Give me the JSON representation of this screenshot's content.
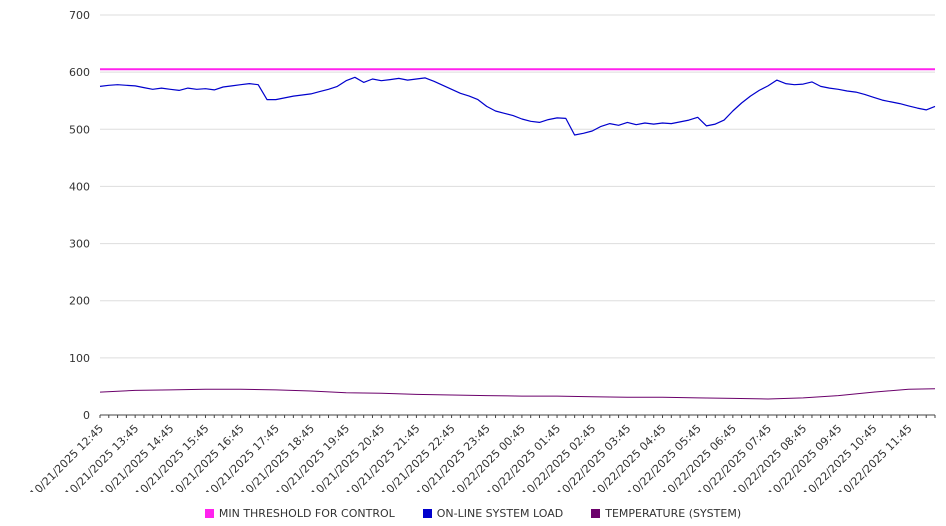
{
  "chart_data": {
    "type": "line",
    "title": "",
    "xlabel": "",
    "ylabel": "",
    "ylim": [
      0,
      700
    ],
    "y_ticks": [
      0,
      100,
      200,
      300,
      400,
      500,
      600,
      700
    ],
    "grid": true,
    "legend_position": "bottom",
    "x_hours_max": 23.75,
    "x_tick_labels": [
      "10/21/2025 12:45",
      "10/21/2025 13:45",
      "10/21/2025 14:45",
      "10/21/2025 15:45",
      "10/21/2025 16:45",
      "10/21/2025 17:45",
      "10/21/2025 18:45",
      "10/21/2025 19:45",
      "10/21/2025 20:45",
      "10/21/2025 21:45",
      "10/21/2025 22:45",
      "10/21/2025 23:45",
      "10/22/2025 00:45",
      "10/22/2025 01:45",
      "10/22/2025 02:45",
      "10/22/2025 03:45",
      "10/22/2025 04:45",
      "10/22/2025 05:45",
      "10/22/2025 06:45",
      "10/22/2025 07:45",
      "10/22/2025 08:45",
      "10/22/2025 09:45",
      "10/22/2025 10:45",
      "10/22/2025 11:45"
    ],
    "series": [
      {
        "name": "MIN THRESHOLD FOR CONTROL",
        "color": "#ff22ee",
        "width": 2,
        "mode": "constant",
        "value": 605
      },
      {
        "name": "ON-LINE SYSTEM LOAD",
        "color": "#0000cd",
        "width": 1.2,
        "x_step_hours": 0.25,
        "values": [
          575,
          577,
          578,
          577,
          576,
          573,
          570,
          572,
          570,
          568,
          572,
          570,
          571,
          569,
          574,
          576,
          578,
          580,
          578,
          552,
          552,
          555,
          558,
          560,
          562,
          566,
          570,
          575,
          585,
          591,
          582,
          588,
          585,
          587,
          589,
          586,
          588,
          590,
          584,
          577,
          570,
          563,
          558,
          552,
          540,
          532,
          528,
          524,
          518,
          514,
          512,
          517,
          520,
          519,
          490,
          493,
          497,
          505,
          510,
          507,
          512,
          508,
          511,
          509,
          511,
          510,
          513,
          516,
          521,
          506,
          509,
          516,
          532,
          546,
          558,
          568,
          576,
          586,
          580,
          578,
          579,
          583,
          575,
          572,
          570,
          567,
          565,
          561,
          556,
          551,
          548,
          545,
          541,
          537,
          534,
          540
        ]
      },
      {
        "name": "TEMPERATURE (SYSTEM)",
        "color": "#6b006b",
        "width": 1,
        "x_step_hours": 1,
        "values": [
          40,
          43,
          44,
          45,
          45,
          44,
          42,
          39,
          38,
          36,
          35,
          34,
          33,
          33,
          32,
          31,
          31,
          30,
          29,
          28,
          30,
          34,
          40,
          45,
          46
        ]
      }
    ]
  }
}
